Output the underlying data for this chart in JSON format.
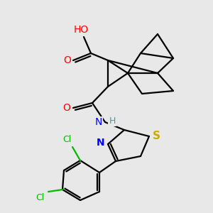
{
  "background_color": "#e8e8e8",
  "atom_colors": {
    "C": "#000000",
    "H": "#4a9a9a",
    "O": "#ff0000",
    "N": "#0000ff",
    "S": "#ccaa00",
    "Cl": "#00bb00"
  },
  "figure_size": [
    3.0,
    3.0
  ],
  "dpi": 100
}
